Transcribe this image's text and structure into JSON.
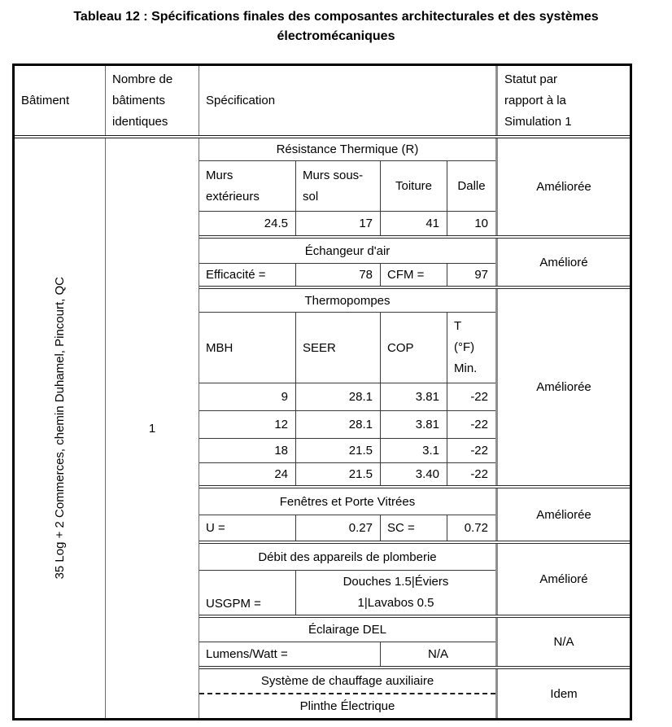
{
  "title": "Tableau 12 : Spécifications finales des composantes architecturales et des systèmes électromécaniques",
  "header": {
    "batiment": "Bâtiment",
    "nombre": "Nombre de bâtiments identiques",
    "specification": "Spécification",
    "statut": "Statut par rapport à la Simulation 1"
  },
  "body": {
    "batiment": "35 Log + 2 Commerces, chemin Duhamel, Pincourt, QC",
    "nombre": "1"
  },
  "sections": [
    {
      "title": "Résistance Thermique (R)",
      "labels": [
        "Murs extérieurs",
        "Murs sous-sol",
        "Toiture",
        "Dalle"
      ],
      "values": [
        "24.5",
        "17",
        "41",
        "10"
      ],
      "status": "Améliorée"
    },
    {
      "title": "Échangeur d'air",
      "cells": [
        "Efficacité =",
        "78",
        "CFM =",
        "97"
      ],
      "status": "Amélioré"
    },
    {
      "title": "Thermopompes",
      "labels": [
        "MBH",
        "SEER",
        "COP",
        "T\n(°F)\nMin."
      ],
      "rows": [
        [
          "9",
          "28.1",
          "3.81",
          "-22"
        ],
        [
          "12",
          "28.1",
          "3.81",
          "-22"
        ],
        [
          "18",
          "21.5",
          "3.1",
          "-22"
        ],
        [
          "24",
          "21.5",
          "3.40",
          "-22"
        ]
      ],
      "status": "Améliorée"
    },
    {
      "title": "Fenêtres et Porte Vitrées",
      "cells": [
        "U =",
        "0.27",
        "SC =",
        "0.72"
      ],
      "status": "Améliorée"
    },
    {
      "title": "Débit des appareils de plomberie",
      "cells": [
        "USGPM =",
        "Douches 1.5|Éviers\n1|Lavabos 0.5"
      ],
      "status": "Amélioré"
    },
    {
      "title": "Éclairage DEL",
      "cells": [
        "Lumens/Watt =",
        "N/A"
      ],
      "status": "N/A"
    },
    {
      "title": "Système de chauffage auxiliaire",
      "subtitle": "Plinthe Électrique",
      "status": "Idem"
    }
  ]
}
